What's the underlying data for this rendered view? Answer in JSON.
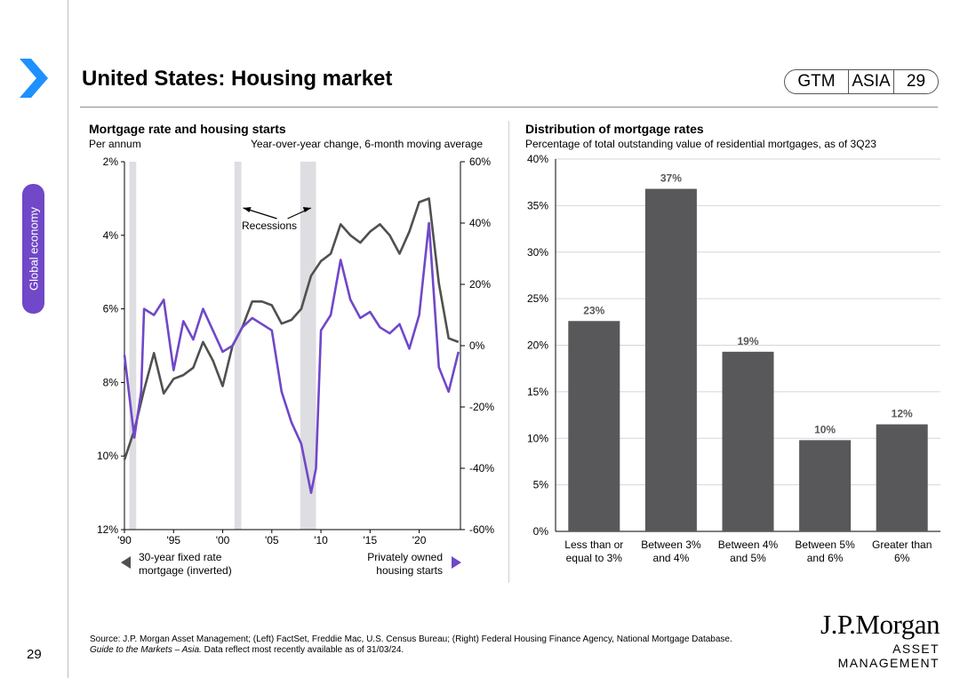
{
  "page": {
    "title": "United States: Housing market",
    "badge": {
      "gtm": "GTM",
      "region": "ASIA",
      "page": "29"
    },
    "side_tab": "Global economy",
    "page_number": "29",
    "source_line1": "Source: J.P. Morgan Asset Management; (Left) FactSet, Freddie Mac, U.S. Census Bureau; (Right) Federal Housing Finance Agency, National Mortgage Database.",
    "source_italic": "Guide to the Markets – Asia.",
    "source_line2": " Data reflect most recently available as of 31/03/24.",
    "logo": {
      "name": "J.P.Morgan",
      "sub": "ASSET MANAGEMENT"
    },
    "colors": {
      "purple": "#7048c8",
      "grey": "#505050",
      "bar": "#58585a",
      "recession": "#dddde2"
    }
  },
  "chart_data": [
    {
      "type": "line",
      "title": "Mortgage rate and housing starts",
      "left_axis_label": "Per annum",
      "right_axis_label": "Year-over-year change, 6-month moving average",
      "x_ticks": [
        "'90",
        "'95",
        "'00",
        "'05",
        "'10",
        "'15",
        "'20"
      ],
      "x_tick_years": [
        1990,
        1995,
        2000,
        2005,
        2010,
        2015,
        2020
      ],
      "xlim": [
        1990,
        2024.2
      ],
      "y_left_ticks": [
        "2%",
        "4%",
        "6%",
        "8%",
        "10%",
        "12%"
      ],
      "y_left_range_inverted": [
        2,
        12
      ],
      "y_right_ticks": [
        "60%",
        "40%",
        "20%",
        "0%",
        "-20%",
        "-40%",
        "-60%"
      ],
      "y_right_range": [
        -60,
        60
      ],
      "recessions": [
        [
          1990.5,
          1991.2
        ],
        [
          2001.2,
          2001.9
        ],
        [
          2007.9,
          2009.5
        ]
      ],
      "recessions_label": "Recessions",
      "series": [
        {
          "name": "30-year fixed rate mortgage (inverted)",
          "axis": "left",
          "points": [
            [
              1990,
              10.1
            ],
            [
              1991,
              9.3
            ],
            [
              1992,
              8.2
            ],
            [
              1993,
              7.2
            ],
            [
              1994,
              8.3
            ],
            [
              1995,
              7.9
            ],
            [
              1996,
              7.8
            ],
            [
              1997,
              7.6
            ],
            [
              1998,
              6.9
            ],
            [
              1999,
              7.4
            ],
            [
              2000,
              8.1
            ],
            [
              2001,
              7.0
            ],
            [
              2002,
              6.5
            ],
            [
              2003,
              5.8
            ],
            [
              2004,
              5.8
            ],
            [
              2005,
              5.9
            ],
            [
              2006,
              6.4
            ],
            [
              2007,
              6.3
            ],
            [
              2008,
              6.0
            ],
            [
              2009,
              5.1
            ],
            [
              2010,
              4.7
            ],
            [
              2011,
              4.5
            ],
            [
              2012,
              3.7
            ],
            [
              2013,
              4.0
            ],
            [
              2014,
              4.2
            ],
            [
              2015,
              3.9
            ],
            [
              2016,
              3.7
            ],
            [
              2017,
              4.0
            ],
            [
              2018,
              4.5
            ],
            [
              2019,
              3.9
            ],
            [
              2020,
              3.1
            ],
            [
              2021,
              3.0
            ],
            [
              2022,
              5.3
            ],
            [
              2023,
              6.8
            ],
            [
              2024,
              6.9
            ]
          ]
        },
        {
          "name": "Privately owned housing starts",
          "axis": "right",
          "points": [
            [
              1990,
              -3
            ],
            [
              1991,
              -30
            ],
            [
              1991.7,
              -15
            ],
            [
              1992,
              12
            ],
            [
              1993,
              10
            ],
            [
              1994,
              15
            ],
            [
              1995,
              -8
            ],
            [
              1996,
              8
            ],
            [
              1997,
              2
            ],
            [
              1998,
              12
            ],
            [
              1999,
              5
            ],
            [
              2000,
              -2
            ],
            [
              2001,
              0
            ],
            [
              2002,
              6
            ],
            [
              2003,
              9
            ],
            [
              2004,
              7
            ],
            [
              2005,
              5
            ],
            [
              2006,
              -15
            ],
            [
              2007,
              -25
            ],
            [
              2008,
              -32
            ],
            [
              2009,
              -48
            ],
            [
              2009.5,
              -40
            ],
            [
              2010,
              5
            ],
            [
              2011,
              10
            ],
            [
              2012,
              28
            ],
            [
              2013,
              15
            ],
            [
              2014,
              9
            ],
            [
              2015,
              11
            ],
            [
              2016,
              6
            ],
            [
              2017,
              4
            ],
            [
              2018,
              7
            ],
            [
              2019,
              -1
            ],
            [
              2020,
              10
            ],
            [
              2021,
              40
            ],
            [
              2022,
              -7
            ],
            [
              2023,
              -15
            ],
            [
              2024,
              -2
            ]
          ]
        }
      ]
    },
    {
      "type": "bar",
      "title": "Distribution of mortgage rates",
      "subtitle": "Percentage of total outstanding value of residential mortgages, as of 3Q23",
      "categories": [
        "Less than or equal to 3%",
        "Between 3% and 4%",
        "Between 4% and 5%",
        "Between 5% and 6%",
        "Greater than 6%"
      ],
      "category_lines": [
        [
          "Less than or",
          "equal to 3%"
        ],
        [
          "Between 3%",
          "and 4%"
        ],
        [
          "Between 4%",
          "and 5%"
        ],
        [
          "Between 5%",
          "and 6%"
        ],
        [
          "Greater than",
          "6%"
        ]
      ],
      "values": [
        22.6,
        36.8,
        19.3,
        9.8,
        11.5
      ],
      "labels": [
        "23%",
        "37%",
        "19%",
        "10%",
        "12%"
      ],
      "y_ticks": [
        "0%",
        "5%",
        "10%",
        "15%",
        "20%",
        "25%",
        "30%",
        "35%",
        "40%"
      ],
      "ylim": [
        0,
        40
      ]
    }
  ]
}
